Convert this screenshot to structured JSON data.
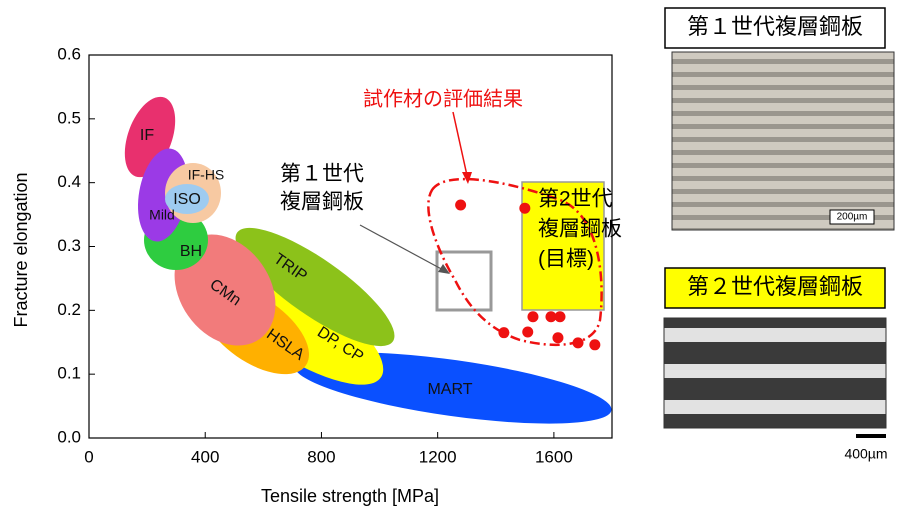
{
  "chart_data": {
    "type": "scatter",
    "x_label": "Tensile strength [MPa]",
    "y_label": "Fracture elongation",
    "xlim": [
      0,
      1800
    ],
    "xticks": [
      0,
      400,
      800,
      1200,
      1600
    ],
    "ylim": [
      0,
      0.6
    ],
    "yticks": [
      {
        "value": 0,
        "label": "0.0"
      },
      0.1,
      0.2,
      0.3,
      0.4,
      0.5,
      0.6
    ],
    "series": [
      {
        "name": "試作材の評価結果",
        "color": "#ee1111",
        "x": [
          1279,
          1500,
          1428,
          1510,
          1528,
          1590,
          1621,
          1614,
          1683,
          1741
        ],
        "values": [
          0.365,
          0.36,
          0.165,
          0.166,
          0.19,
          0.19,
          0.19,
          0.157,
          0.149,
          0.146
        ]
      }
    ],
    "regions": [
      {
        "label": "MART",
        "color": "#0a50ff"
      },
      {
        "label": "DP, CP",
        "color": "#ffff00"
      },
      {
        "label": "TRIP",
        "color": "#8cc21a"
      },
      {
        "label": "HSLA",
        "color": "#ffb000"
      },
      {
        "label": "CMn",
        "color": "#f27b7b"
      },
      {
        "label": "BH",
        "color": "#2ecc40"
      },
      {
        "label": "IF",
        "color": "#e8306e"
      },
      {
        "label": "Mild",
        "color": "#9b3ae6"
      },
      {
        "label": "IF-HS",
        "color": "#f7c9a2"
      },
      {
        "label": "ISO",
        "color": "#9ecbf0"
      }
    ],
    "annotations": {
      "gen1_box": [
        "第１世代",
        "複層鋼板"
      ],
      "gen2_box": [
        "第2世代",
        "複層鋼板",
        "(目標)"
      ]
    },
    "panels": [
      {
        "title": "第１世代複層鋼板",
        "scale": "200µm"
      },
      {
        "title": "第２世代複層鋼板",
        "scale": "400µm"
      }
    ]
  }
}
